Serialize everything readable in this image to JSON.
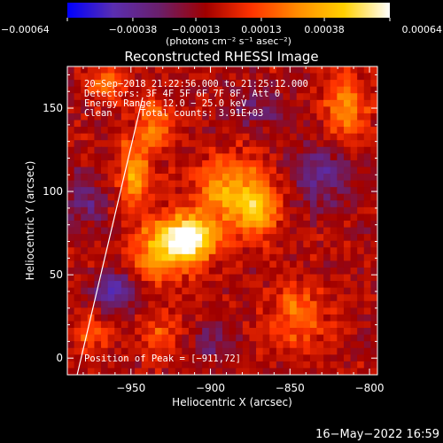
{
  "chart_data": {
    "type": "heatmap",
    "title": "Reconstructed RHESSI Image",
    "xlabel": "Heliocentric X (arcsec)",
    "ylabel": "Heliocentric Y (arcsec)",
    "xlim": [
      -990,
      -795
    ],
    "ylim": [
      -10,
      175
    ],
    "x_ticks": [
      -950,
      -900,
      -850,
      -800
    ],
    "x_tick_labels": [
      "−950",
      "−900",
      "−850",
      "−800"
    ],
    "y_ticks": [
      0,
      50,
      100,
      150
    ],
    "y_tick_labels": [
      "0",
      "50",
      "100",
      "150"
    ],
    "colorbar": {
      "ticks": [
        -0.00064,
        -0.00038,
        -0.00013,
        0.00013,
        0.00038,
        0.00064
      ],
      "tick_labels": [
        "−0.00064",
        "−0.00038",
        "−0.00013",
        "0.00013",
        "0.00038",
        "0.00064"
      ],
      "units_label": "(photons cm⁻² s⁻¹ asec⁻²)",
      "colors": [
        "#0000ff",
        "#5a2eb0",
        "#6a1f6a",
        "#a00000",
        "#ff3300",
        "#ff8c00",
        "#ffd000",
        "#ffffff"
      ]
    },
    "annotations": [
      "20−Sep−2018 21:22:56.000 to 21:25:12.000",
      "Detectors: 3F 4F 5F 6F 7F 8F, Att 0",
      "Energy Range: 12.0 − 25.0 keV",
      "Clean     Total counts: 3.91E+03",
      "Position of Peak = [−911,72]"
    ],
    "sources": [
      {
        "x": -912,
        "y": 72,
        "peak": 0.00064,
        "sx": 11,
        "sy": 9
      },
      {
        "x": -930,
        "y": 65,
        "peak": 0.00045,
        "sx": 14,
        "sy": 13
      },
      {
        "x": -888,
        "y": 100,
        "peak": 0.0004,
        "sx": 16,
        "sy": 15
      },
      {
        "x": -870,
        "y": 88,
        "peak": 0.00034,
        "sx": 10,
        "sy": 12
      },
      {
        "x": -948,
        "y": 112,
        "peak": 0.00042,
        "sx": 7,
        "sy": 14
      },
      {
        "x": -935,
        "y": 140,
        "peak": 0.0003,
        "sx": 7,
        "sy": 11
      },
      {
        "x": -815,
        "y": 150,
        "peak": 0.00038,
        "sx": 9,
        "sy": 14
      },
      {
        "x": -965,
        "y": 165,
        "peak": 0.00025,
        "sx": 10,
        "sy": 8
      },
      {
        "x": -845,
        "y": 25,
        "peak": 0.0003,
        "sx": 12,
        "sy": 14
      },
      {
        "x": -975,
        "y": 15,
        "peak": 0.00022,
        "sx": 8,
        "sy": 9
      },
      {
        "x": -930,
        "y": 15,
        "peak": 0.0002,
        "sx": 10,
        "sy": 9
      },
      {
        "x": -960,
        "y": 40,
        "peak": -0.0004,
        "sx": 10,
        "sy": 8
      },
      {
        "x": -980,
        "y": 95,
        "peak": -0.00022,
        "sx": 10,
        "sy": 12
      },
      {
        "x": -830,
        "y": 110,
        "peak": -0.00025,
        "sx": 14,
        "sy": 14
      },
      {
        "x": -870,
        "y": 150,
        "peak": -0.0002,
        "sx": 12,
        "sy": 9
      },
      {
        "x": -900,
        "y": 10,
        "peak": -0.00018,
        "sx": 10,
        "sy": 8
      }
    ]
  },
  "footer": {
    "timestamp": "16−May−2022 16:59"
  }
}
